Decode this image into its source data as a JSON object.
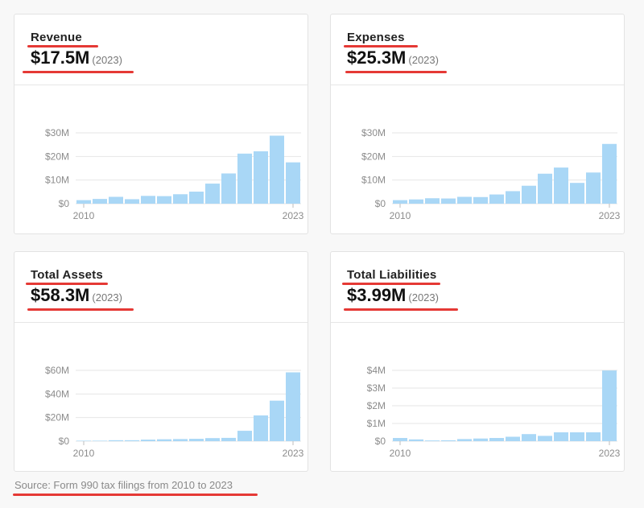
{
  "source": "Source: Form 990 tax filings from 2010 to 2023",
  "colors": {
    "bar": "#a9d7f6",
    "underline": "#e53935",
    "grid": "#e6e6e6"
  },
  "cards": [
    {
      "title": "Revenue",
      "value": "$17.5M",
      "year": "(2023)"
    },
    {
      "title": "Expenses",
      "value": "$25.3M",
      "year": "(2023)"
    },
    {
      "title": "Total Assets",
      "value": "$58.3M",
      "year": "(2023)"
    },
    {
      "title": "Total Liabilities",
      "value": "$3.99M",
      "year": "(2023)"
    }
  ],
  "chart_data": [
    {
      "type": "bar",
      "title": "Revenue",
      "x_labels": [
        "2010",
        "2023"
      ],
      "y_ticks": [
        "$0",
        "$10M",
        "$20M",
        "$30M"
      ],
      "ylim": [
        0,
        30
      ],
      "units": "$M",
      "values": [
        1.5,
        2.0,
        2.9,
        1.9,
        3.3,
        3.2,
        4.0,
        5.1,
        8.5,
        12.8,
        21.2,
        22.2,
        28.8,
        17.5
      ]
    },
    {
      "type": "bar",
      "title": "Expenses",
      "x_labels": [
        "2010",
        "2023"
      ],
      "y_ticks": [
        "$0",
        "$10M",
        "$20M",
        "$30M"
      ],
      "ylim": [
        0,
        30
      ],
      "units": "$M",
      "values": [
        1.5,
        1.8,
        2.3,
        2.2,
        2.9,
        2.8,
        3.9,
        5.3,
        7.6,
        12.7,
        15.3,
        8.8,
        13.2,
        25.3
      ]
    },
    {
      "type": "bar",
      "title": "Total Assets",
      "x_labels": [
        "2010",
        "2023"
      ],
      "y_ticks": [
        "$0",
        "$20M",
        "$40M",
        "$60M"
      ],
      "ylim": [
        0,
        60
      ],
      "units": "$M",
      "values": [
        0.4,
        0.4,
        0.8,
        0.8,
        1.3,
        1.6,
        1.8,
        2.0,
        2.6,
        2.8,
        8.8,
        21.8,
        34.3,
        58.3
      ]
    },
    {
      "type": "bar",
      "title": "Total Liabilities",
      "x_labels": [
        "2010",
        "2023"
      ],
      "y_ticks": [
        "$0",
        "$1M",
        "$2M",
        "$3M",
        "$4M"
      ],
      "ylim": [
        0,
        4
      ],
      "units": "$M",
      "values": [
        0.18,
        0.1,
        0.04,
        0.05,
        0.12,
        0.15,
        0.18,
        0.25,
        0.4,
        0.3,
        0.5,
        0.5,
        0.5,
        3.99
      ]
    }
  ]
}
